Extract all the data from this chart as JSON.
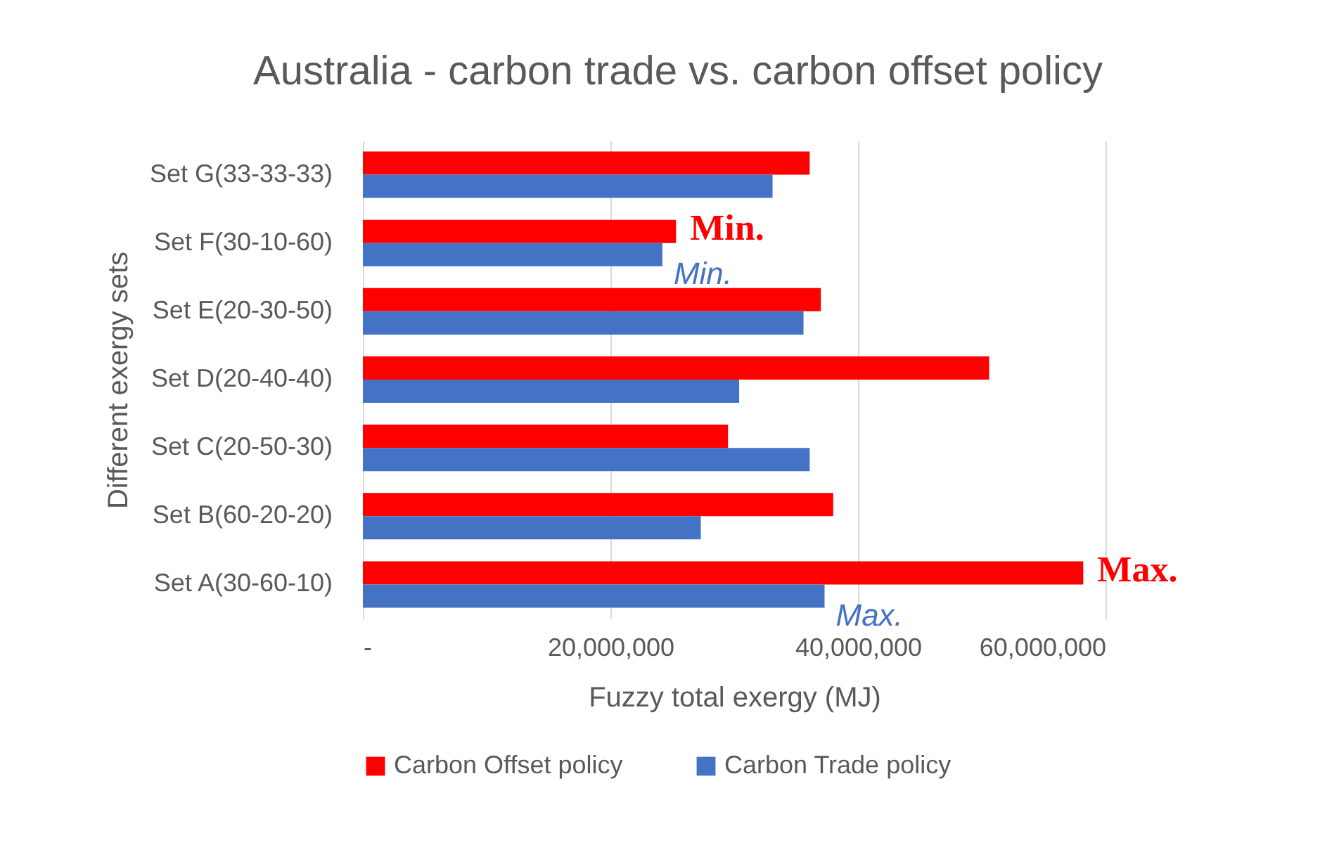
{
  "chart_data": {
    "type": "bar",
    "orientation": "horizontal",
    "title": "Australia - carbon trade vs. carbon offset policy",
    "xlabel": "Fuzzy total exergy (MJ)",
    "ylabel": "Different exergy sets",
    "categories": [
      "Set G(33-33-33)",
      "Set F(30-10-60)",
      "Set E(20-30-50)",
      "Set D(20-40-40)",
      "Set C(20-50-30)",
      "Set B(60-20-20)",
      "Set A(30-60-10)"
    ],
    "series": [
      {
        "name": "Carbon Offset policy",
        "color": "#ff0000",
        "values": [
          36100000,
          25300000,
          37000000,
          50600000,
          29500000,
          38000000,
          58200000
        ]
      },
      {
        "name": "Carbon Trade policy",
        "color": "#4472c4",
        "values": [
          33100000,
          24200000,
          35600000,
          30400000,
          36100000,
          27300000,
          37300000
        ]
      }
    ],
    "xlim": [
      0,
      60000000
    ],
    "xticks": [
      {
        "value": 0,
        "label": "-"
      },
      {
        "value": 20000000,
        "label": "20,000,000"
      },
      {
        "value": 40000000,
        "label": "40,000,000"
      },
      {
        "value": 60000000,
        "label": "60,000,000"
      }
    ],
    "grid": "x",
    "legend": "bottom",
    "annotations": [
      {
        "text": "Min.",
        "x": 25300000,
        "y": "Set F(30-10-60)"
      },
      {
        "text": "Min.",
        "x": 24200000,
        "y": "Set F(30-10-60)"
      },
      {
        "text": "Max.",
        "x": 58200000,
        "y": "Set A(30-60-10)"
      },
      {
        "text": "Max.",
        "x": 37300000,
        "y": "Set A(30-60-10)"
      }
    ]
  }
}
